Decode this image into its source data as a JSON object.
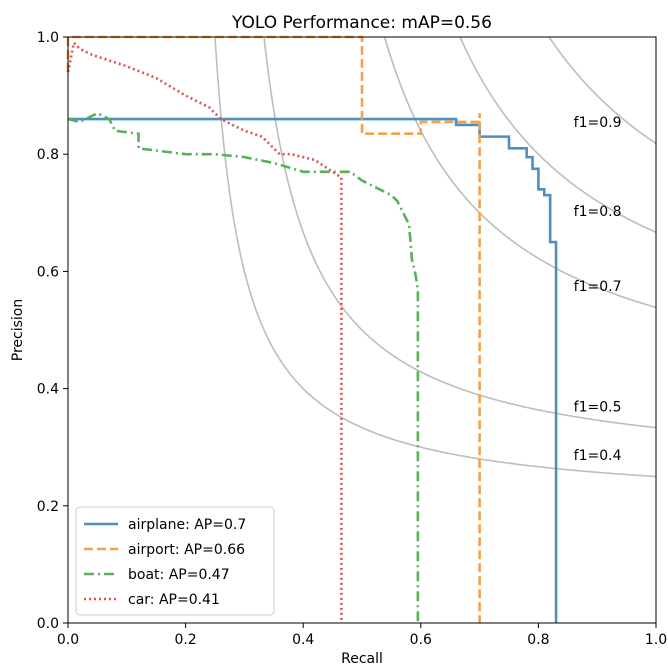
{
  "chart_data": {
    "type": "line",
    "title": "YOLO Performance:  mAP=0.56",
    "xlabel": "Recall",
    "ylabel": "Precision",
    "xlim": [
      0.0,
      1.0
    ],
    "ylim": [
      0.0,
      1.0
    ],
    "xticks": [
      "0.0",
      "0.2",
      "0.4",
      "0.6",
      "0.8",
      "1.0"
    ],
    "yticks": [
      "0.0",
      "0.2",
      "0.4",
      "0.6",
      "0.8",
      "1.0"
    ],
    "grid": false,
    "legend_position": "lower-left",
    "iso_f1": [
      {
        "label": "f1=0.9",
        "f1": 0.9
      },
      {
        "label": "f1=0.8",
        "f1": 0.8
      },
      {
        "label": "f1=0.7",
        "f1": 0.7
      },
      {
        "label": "f1=0.5",
        "f1": 0.5
      },
      {
        "label": "f1=0.4",
        "f1": 0.4
      }
    ],
    "iso_color": "#bdbdbd",
    "series": [
      {
        "name": "airplane: AP=0.7",
        "color": "#4c8fc0",
        "style": "solid",
        "x": [
          0.0,
          0.66,
          0.66,
          0.7,
          0.7,
          0.75,
          0.75,
          0.78,
          0.78,
          0.79,
          0.79,
          0.8,
          0.8,
          0.81,
          0.81,
          0.82,
          0.82,
          0.83,
          0.83
        ],
        "y": [
          0.86,
          0.86,
          0.85,
          0.85,
          0.83,
          0.83,
          0.81,
          0.81,
          0.795,
          0.795,
          0.775,
          0.775,
          0.74,
          0.74,
          0.73,
          0.73,
          0.65,
          0.65,
          0.0
        ]
      },
      {
        "name": "airport: AP=0.66",
        "color": "#f5a04a",
        "style": "dashed",
        "x": [
          0.0,
          0.0,
          0.5,
          0.5,
          0.6,
          0.6,
          0.7,
          0.7,
          0.7
        ],
        "y": [
          0.94,
          1.0,
          1.0,
          0.835,
          0.835,
          0.855,
          0.855,
          0.87,
          0.0
        ]
      },
      {
        "name": "boat: AP=0.47",
        "color": "#5aaf5a",
        "style": "dashdot",
        "x": [
          0.0,
          0.02,
          0.03,
          0.05,
          0.07,
          0.08,
          0.12,
          0.12,
          0.2,
          0.25,
          0.3,
          0.35,
          0.4,
          0.45,
          0.48,
          0.5,
          0.53,
          0.55,
          0.56,
          0.57,
          0.58,
          0.585,
          0.59,
          0.595,
          0.595
        ],
        "y": [
          0.86,
          0.855,
          0.86,
          0.87,
          0.86,
          0.84,
          0.835,
          0.81,
          0.8,
          0.8,
          0.795,
          0.785,
          0.77,
          0.77,
          0.77,
          0.755,
          0.74,
          0.73,
          0.72,
          0.7,
          0.68,
          0.62,
          0.6,
          0.57,
          0.0
        ]
      },
      {
        "name": "car: AP=0.41",
        "color": "#e05252",
        "style": "dotted",
        "x": [
          0.0,
          0.01,
          0.02,
          0.04,
          0.07,
          0.1,
          0.15,
          0.2,
          0.24,
          0.26,
          0.28,
          0.3,
          0.33,
          0.35,
          0.36,
          0.38,
          0.42,
          0.45,
          0.465,
          0.465
        ],
        "y": [
          0.94,
          0.99,
          0.98,
          0.97,
          0.96,
          0.95,
          0.93,
          0.9,
          0.88,
          0.86,
          0.85,
          0.84,
          0.83,
          0.81,
          0.8,
          0.8,
          0.79,
          0.77,
          0.76,
          0.0
        ]
      }
    ]
  }
}
